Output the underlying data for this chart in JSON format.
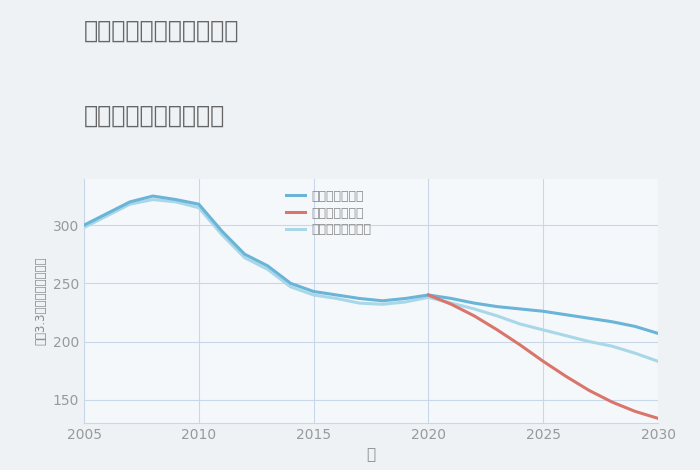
{
  "title_line1": "東京都あきる野市草花の",
  "title_line2": "中古戸建ての価格推移",
  "xlabel": "年",
  "ylabel": "坪（3.3㎡）単価（万円）",
  "background_color": "#eef2f5",
  "plot_background_color": "#f5f8fb",
  "xlim": [
    2005,
    2030
  ],
  "ylim": [
    130,
    340
  ],
  "yticks": [
    150,
    200,
    250,
    300
  ],
  "xticks": [
    2005,
    2010,
    2015,
    2020,
    2025,
    2030
  ],
  "good_scenario": {
    "label": "グッドシナリオ",
    "color": "#6ab4d8",
    "x": [
      2005,
      2006,
      2007,
      2008,
      2009,
      2010,
      2011,
      2012,
      2013,
      2014,
      2015,
      2016,
      2017,
      2018,
      2019,
      2020,
      2021,
      2022,
      2023,
      2024,
      2025,
      2026,
      2027,
      2028,
      2029,
      2030
    ],
    "y": [
      300,
      310,
      320,
      325,
      322,
      318,
      295,
      275,
      265,
      250,
      243,
      240,
      237,
      235,
      237,
      240,
      237,
      233,
      230,
      228,
      226,
      223,
      220,
      217,
      213,
      207
    ]
  },
  "bad_scenario": {
    "label": "バッドシナリオ",
    "color": "#d9756a",
    "x": [
      2020,
      2021,
      2022,
      2023,
      2024,
      2025,
      2026,
      2027,
      2028,
      2029,
      2030
    ],
    "y": [
      240,
      232,
      222,
      210,
      197,
      183,
      170,
      158,
      148,
      140,
      134
    ]
  },
  "normal_scenario": {
    "label": "ノーマルシナリオ",
    "color": "#a8d8e8",
    "x": [
      2005,
      2006,
      2007,
      2008,
      2009,
      2010,
      2011,
      2012,
      2013,
      2014,
      2015,
      2016,
      2017,
      2018,
      2019,
      2020,
      2021,
      2022,
      2023,
      2024,
      2025,
      2026,
      2027,
      2028,
      2029,
      2030
    ],
    "y": [
      298,
      308,
      318,
      322,
      320,
      315,
      292,
      272,
      262,
      247,
      240,
      237,
      233,
      232,
      234,
      238,
      233,
      228,
      222,
      215,
      210,
      205,
      200,
      196,
      190,
      183
    ]
  },
  "title_color": "#666666",
  "axis_label_color": "#888888",
  "tick_color": "#999999",
  "grid_color": "#c8d8ea",
  "line_width": 2.2
}
